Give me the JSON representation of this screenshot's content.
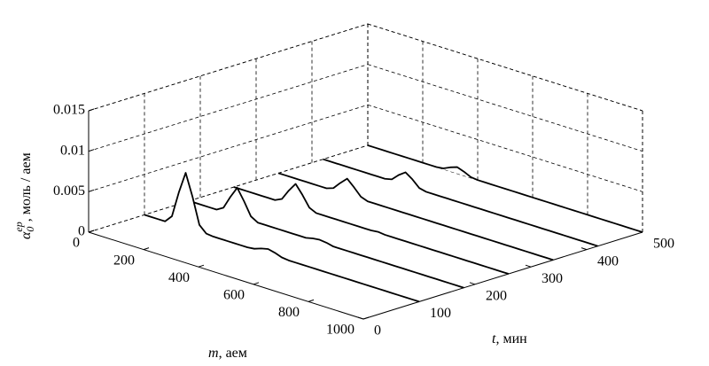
{
  "chart_data": {
    "type": "waterfall3d",
    "xlabel": {
      "symbol": "m",
      "text": ", аем"
    },
    "ylabel": {
      "symbol": "t",
      "text": ", мин"
    },
    "zlabel": {
      "symbol": "α",
      "sub": "0",
      "sup": "ep",
      "text": ", моль / аем"
    },
    "xlim": [
      0,
      1000
    ],
    "xticks": [
      0,
      200,
      400,
      600,
      800,
      1000
    ],
    "ylim": [
      0,
      500
    ],
    "yticks": [
      0,
      100,
      200,
      300,
      400,
      500
    ],
    "zlim": [
      0,
      0.015
    ],
    "zticks": [
      0,
      0.005,
      0.01,
      0.015
    ],
    "grid": true,
    "x": [
      0,
      25,
      50,
      75,
      100,
      125,
      150,
      175,
      200,
      225,
      250,
      275,
      300,
      325,
      350,
      375,
      400,
      425,
      450,
      475,
      500,
      525,
      550,
      575,
      600,
      625,
      650,
      675,
      700,
      725,
      750,
      775,
      800,
      825,
      850,
      875,
      900,
      925,
      950,
      975,
      1000
    ],
    "series": [
      {
        "y": 100,
        "color": "#000000",
        "values": [
          0,
          0,
          0,
          0,
          0.0009,
          0.0041,
          0.0068,
          0.0041,
          0.0009,
          0.0001,
          0,
          0,
          0,
          0,
          0,
          0,
          0.0001,
          0.0004,
          0.0006,
          0.0004,
          0.0001,
          0,
          0,
          0,
          0,
          0,
          0,
          0,
          0,
          0,
          0,
          0,
          0,
          0,
          0,
          0,
          0,
          0,
          0,
          0,
          0
        ]
      },
      {
        "y": 180,
        "color": "#000000",
        "values": [
          0,
          0,
          0,
          0,
          0,
          0.0005,
          0.0021,
          0.0035,
          0.0021,
          0.0005,
          0,
          0,
          0,
          0,
          0,
          0,
          0,
          0,
          0.0002,
          0.0003,
          0.0002,
          0,
          0,
          0,
          0,
          0,
          0,
          0,
          0,
          0,
          0,
          0,
          0,
          0,
          0,
          0,
          0,
          0,
          0,
          0,
          0
        ]
      },
      {
        "y": 260,
        "color": "#000000",
        "values": [
          0,
          0,
          0,
          0,
          0,
          0,
          0,
          0.0004,
          0.0017,
          0.0028,
          0.0017,
          0.0004,
          0,
          0,
          0,
          0,
          0,
          0,
          0,
          0,
          0,
          0.0001,
          0,
          0,
          0,
          0,
          0,
          0,
          0,
          0,
          0,
          0,
          0,
          0,
          0,
          0,
          0,
          0,
          0,
          0,
          0
        ]
      },
      {
        "y": 340,
        "color": "#000000",
        "values": [
          0,
          0,
          0,
          0,
          0,
          0,
          0,
          0,
          0.0003,
          0.0012,
          0.002,
          0.0012,
          0.0003,
          0,
          0,
          0,
          0,
          0,
          0,
          0,
          0,
          0,
          0,
          0,
          0,
          0,
          0,
          0,
          0,
          0,
          0,
          0,
          0,
          0,
          0,
          0,
          0,
          0,
          0,
          0,
          0
        ]
      },
      {
        "y": 420,
        "color": "#000000",
        "values": [
          0,
          0,
          0,
          0,
          0,
          0,
          0,
          0,
          0,
          0,
          0.0002,
          0.001,
          0.0016,
          0.001,
          0.0002,
          0,
          0,
          0,
          0,
          0,
          0,
          0,
          0,
          0,
          0,
          0,
          0,
          0,
          0,
          0,
          0,
          0,
          0,
          0,
          0,
          0,
          0,
          0,
          0,
          0,
          0
        ]
      },
      {
        "y": 500,
        "color": "#000000",
        "values": [
          0,
          0,
          0,
          0,
          0,
          0,
          0,
          0,
          0,
          0,
          0,
          0.0001,
          0.0005,
          0.0008,
          0.0005,
          0.0001,
          0,
          0,
          0,
          0,
          0,
          0,
          0,
          0,
          0,
          0,
          0,
          0,
          0,
          0,
          0,
          0,
          0,
          0,
          0,
          0,
          0,
          0,
          0,
          0,
          0
        ]
      }
    ]
  }
}
